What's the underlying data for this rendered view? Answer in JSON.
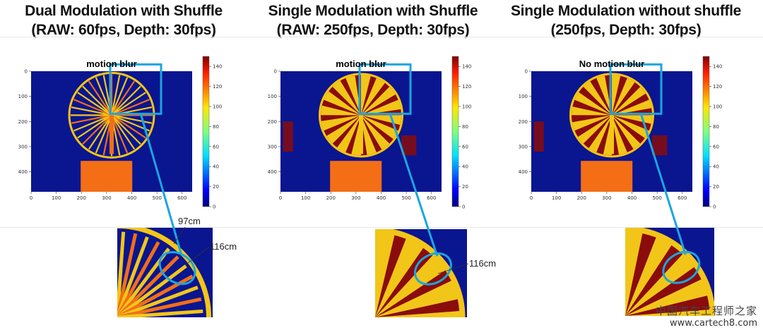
{
  "panels": [
    {
      "id": "dual",
      "header_line1": "Dual Modulation with Shuffle",
      "header_line2": "(RAW: 60fps, Depth: 30fps)",
      "plot_title": "motion blur",
      "callouts": [
        "97cm",
        "116cm"
      ]
    },
    {
      "id": "single_shuffle",
      "header_line1": "Single Modulation with Shuffle",
      "header_line2": "(RAW: 250fps, Depth: 30fps)",
      "plot_title": "motion blur",
      "callouts": [
        "116cm"
      ]
    },
    {
      "id": "single_noshuffle",
      "header_line1": "Single Modulation without shuffle",
      "header_line2": "(250fps, Depth: 30fps)",
      "plot_title": "No motion blur",
      "callouts": []
    }
  ],
  "axes": {
    "x_ticks": [
      "0",
      "100",
      "200",
      "300",
      "400",
      "500",
      "600"
    ],
    "y_ticks": [
      "0",
      "100",
      "200",
      "300",
      "400"
    ],
    "colorbar_ticks": [
      "140",
      "120",
      "100",
      "80",
      "60",
      "40",
      "20",
      "0"
    ]
  },
  "colors": {
    "background_blue": "#0a1590",
    "wheel_yellow": "#f2c618",
    "dark_red": "#8a0c0c",
    "orange": "#f46e16",
    "highlight_cyan": "#1aa6e0"
  },
  "watermark": {
    "site_cn": "中国汽车工程师之家",
    "url": "www.cartech8.com"
  }
}
